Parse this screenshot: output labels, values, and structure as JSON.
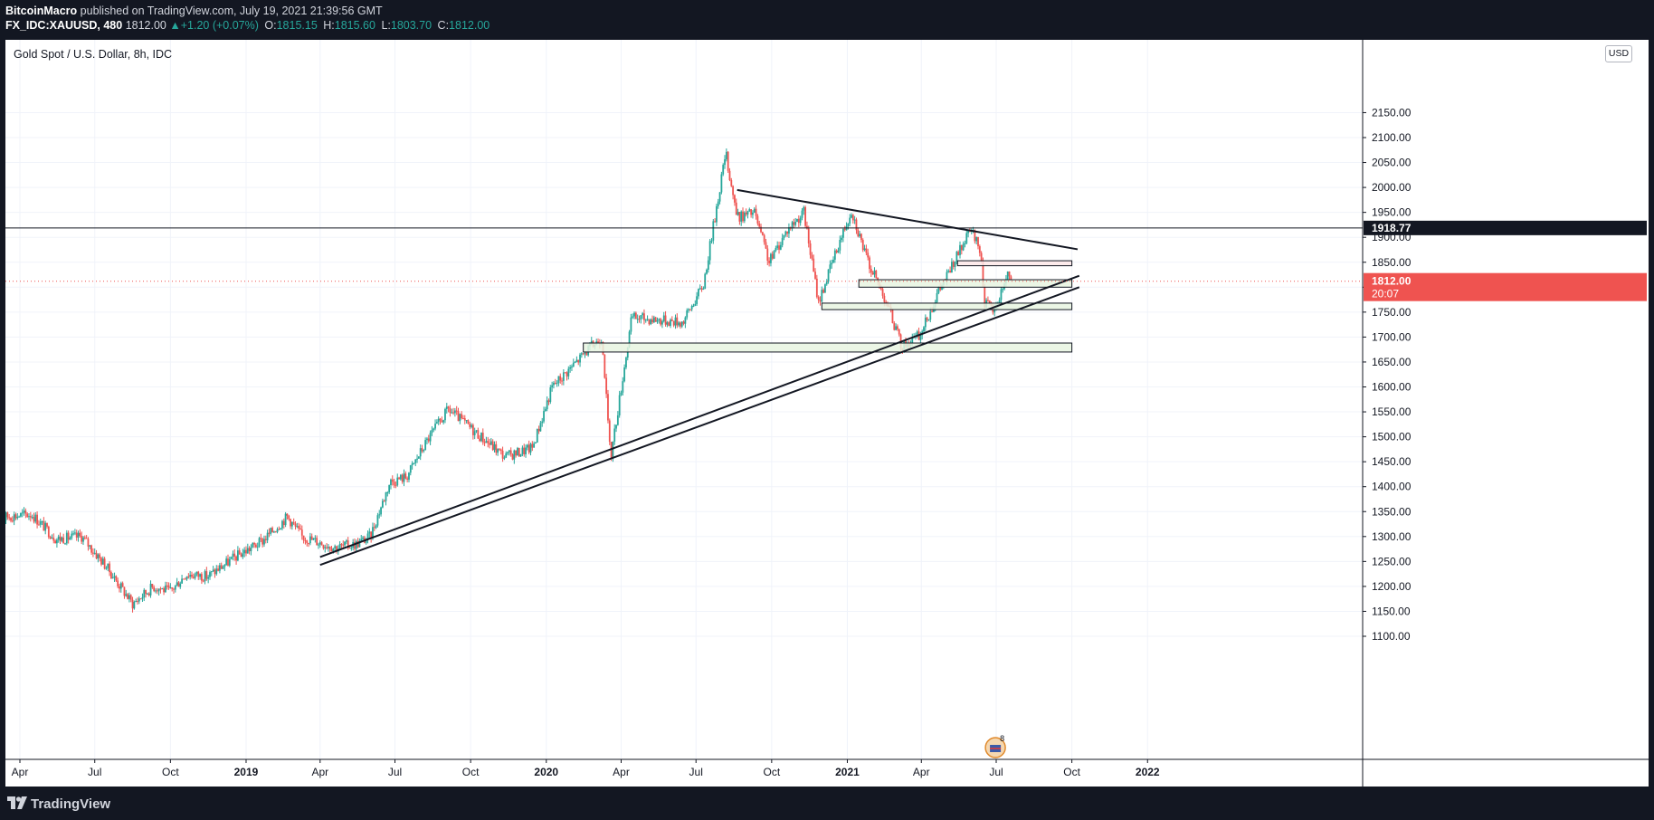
{
  "header": {
    "author": "BitcoinMacro",
    "published": " published on TradingView.com, July 19, 2021 21:39:56 GMT",
    "symbol": "FX_IDC:XAUUSD, 480",
    "last": "1812.00",
    "change": "+1.20 (+0.07%)",
    "o_label": "O:",
    "o_value": "1815.15",
    "h_label": "H:",
    "h_value": "1815.60",
    "l_label": "L:",
    "l_value": "1803.70",
    "c_label": "C:",
    "c_value": "1812.00"
  },
  "chart_title": "Gold Spot / U.S. Dollar, 8h, IDC",
  "currency_button": "USD",
  "footer_brand": "TradingView",
  "colors": {
    "up": "#26a69a",
    "down": "#ef5350",
    "zone_fill": "#e8f5e1",
    "zone_red": "#fde8e8",
    "price_badge": "#ef5350",
    "hline": "#131722"
  },
  "chart_data": {
    "type": "candlestick",
    "title": "Gold Spot / U.S. Dollar, 8h, IDC",
    "ylim": [
      1080,
      2160
    ],
    "y_ticks": [
      1100,
      1150,
      1200,
      1250,
      1300,
      1350,
      1400,
      1450,
      1500,
      1550,
      1600,
      1650,
      1700,
      1750,
      1800,
      1850,
      1900,
      1950,
      2000,
      2050,
      2100,
      2150
    ],
    "x_ticks": [
      {
        "label": "Apr",
        "date": "2018-04-01"
      },
      {
        "label": "Jul",
        "date": "2018-07-01"
      },
      {
        "label": "Oct",
        "date": "2018-10-01"
      },
      {
        "label": "2019",
        "date": "2019-01-01",
        "bold": true
      },
      {
        "label": "Apr",
        "date": "2019-04-01"
      },
      {
        "label": "Jul",
        "date": "2019-07-01"
      },
      {
        "label": "Oct",
        "date": "2019-10-01"
      },
      {
        "label": "2020",
        "date": "2020-01-01",
        "bold": true
      },
      {
        "label": "Apr",
        "date": "2020-04-01"
      },
      {
        "label": "Jul",
        "date": "2020-07-01"
      },
      {
        "label": "Oct",
        "date": "2020-10-01"
      },
      {
        "label": "2021",
        "date": "2021-01-01",
        "bold": true
      },
      {
        "label": "Apr",
        "date": "2021-04-01"
      },
      {
        "label": "Jul",
        "date": "2021-07-01"
      },
      {
        "label": "Oct",
        "date": "2021-10-01"
      },
      {
        "label": "2022",
        "date": "2022-01-01",
        "bold": true
      }
    ],
    "price_path": [
      [
        "2018-03-01",
        1318
      ],
      [
        "2018-03-15",
        1340
      ],
      [
        "2018-04-15",
        1345
      ],
      [
        "2018-05-15",
        1295
      ],
      [
        "2018-06-15",
        1300
      ],
      [
        "2018-07-15",
        1240
      ],
      [
        "2018-08-16",
        1165
      ],
      [
        "2018-09-10",
        1200
      ],
      [
        "2018-10-01",
        1190
      ],
      [
        "2018-10-20",
        1225
      ],
      [
        "2018-11-15",
        1220
      ],
      [
        "2018-12-20",
        1260
      ],
      [
        "2019-01-20",
        1290
      ],
      [
        "2019-02-20",
        1340
      ],
      [
        "2019-03-10",
        1300
      ],
      [
        "2019-04-20",
        1278
      ],
      [
        "2019-05-15",
        1285
      ],
      [
        "2019-06-01",
        1300
      ],
      [
        "2019-06-25",
        1410
      ],
      [
        "2019-07-15",
        1420
      ],
      [
        "2019-08-10",
        1495
      ],
      [
        "2019-09-04",
        1555
      ],
      [
        "2019-10-10",
        1505
      ],
      [
        "2019-11-12",
        1460
      ],
      [
        "2019-12-15",
        1478
      ],
      [
        "2020-01-08",
        1600
      ],
      [
        "2020-02-24",
        1680
      ],
      [
        "2020-03-09",
        1700
      ],
      [
        "2020-03-19",
        1455
      ],
      [
        "2020-04-14",
        1740
      ],
      [
        "2020-05-15",
        1735
      ],
      [
        "2020-06-15",
        1730
      ],
      [
        "2020-07-10",
        1805
      ],
      [
        "2020-07-28",
        1980
      ],
      [
        "2020-08-06",
        2070
      ],
      [
        "2020-08-20",
        1940
      ],
      [
        "2020-09-10",
        1950
      ],
      [
        "2020-09-28",
        1850
      ],
      [
        "2020-10-20",
        1915
      ],
      [
        "2020-11-09",
        1950
      ],
      [
        "2020-11-27",
        1770
      ],
      [
        "2020-12-20",
        1880
      ],
      [
        "2021-01-06",
        1955
      ],
      [
        "2021-01-25",
        1855
      ],
      [
        "2021-02-18",
        1770
      ],
      [
        "2021-03-08",
        1680
      ],
      [
        "2021-03-31",
        1705
      ],
      [
        "2021-04-20",
        1785
      ],
      [
        "2021-05-20",
        1880
      ],
      [
        "2021-06-01",
        1915
      ],
      [
        "2021-06-12",
        1870
      ],
      [
        "2021-06-17",
        1770
      ],
      [
        "2021-06-29",
        1752
      ],
      [
        "2021-07-15",
        1830
      ],
      [
        "2021-07-19",
        1812
      ]
    ],
    "price_line": {
      "value": 1918.77,
      "label": "1918.77"
    },
    "last_price": {
      "value": 1812.0,
      "label": "1812.00",
      "countdown": "20:07"
    },
    "trendlines": [
      {
        "from": [
          "2019-04-01",
          1259
        ],
        "to": [
          "2021-10-10",
          1823
        ]
      },
      {
        "from": [
          "2019-04-01",
          1243
        ],
        "to": [
          "2021-10-10",
          1800
        ]
      },
      {
        "from": [
          "2020-08-20",
          1995
        ],
        "to": [
          "2021-10-08",
          1876
        ]
      }
    ],
    "zones": [
      {
        "from": "2020-02-15",
        "to": "2021-10-01",
        "low": 1670,
        "high": 1688,
        "color": "green"
      },
      {
        "from": "2020-12-01",
        "to": "2021-10-01",
        "low": 1755,
        "high": 1768,
        "color": "green"
      },
      {
        "from": "2021-01-15",
        "to": "2021-10-01",
        "low": 1800,
        "high": 1815,
        "color": "green"
      },
      {
        "from": "2021-05-15",
        "to": "2021-10-01",
        "low": 1843,
        "high": 1853,
        "color": "red"
      }
    ],
    "grid": true,
    "events_badge": "8"
  }
}
